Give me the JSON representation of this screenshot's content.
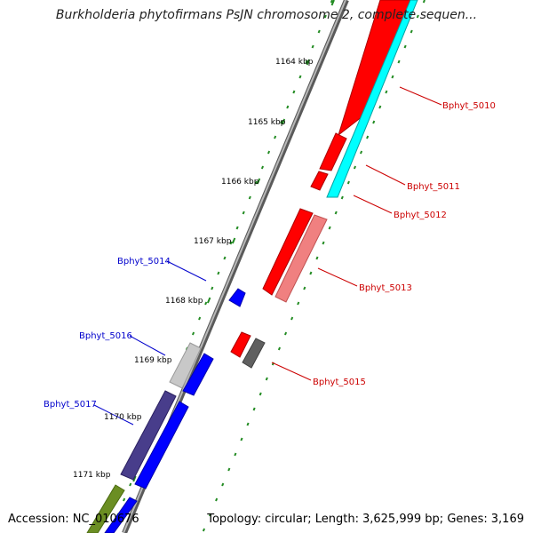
{
  "title": "Burkholderia phytofirmans PsJN chromosome 2, complete sequen...",
  "footer": {
    "accession_label": "Accession:",
    "accession": "NC_010676",
    "topology_label": "Topology:",
    "topology": "circular;",
    "length_label": "Length:",
    "length": "3,625,999 bp;",
    "genes_label": "Genes:",
    "genes": "3,169"
  },
  "scale_ticks": [
    "1164 kbp",
    "1165 kbp",
    "1166 kbp",
    "1167 kbp",
    "1168 kbp",
    "1169 kbp",
    "1170 kbp",
    "1171 kbp"
  ],
  "gene_labels": [
    {
      "text": "Bphyt_5010",
      "color": "#cc0000"
    },
    {
      "text": "Bphyt_5011",
      "color": "#cc0000"
    },
    {
      "text": "Bphyt_5012",
      "color": "#cc0000"
    },
    {
      "text": "Bphyt_5013",
      "color": "#cc0000"
    },
    {
      "text": "Bphyt_5014",
      "color": "#0000cc"
    },
    {
      "text": "Bphyt_5015",
      "color": "#cc0000"
    },
    {
      "text": "Bphyt_5016",
      "color": "#0000cc"
    },
    {
      "text": "Bphyt_5017",
      "color": "#0000cc"
    }
  ],
  "colors": {
    "backbone": "#808080",
    "tick_dots": "#228b22",
    "gene_red": "#ff0000",
    "gene_pink": "#f08080",
    "gene_cyan": "#00ffff",
    "gene_blue": "#0000ff",
    "gene_gray": "#c8c8c8",
    "gene_darkgray": "#606060",
    "gene_purple": "#483d8b",
    "gene_olive": "#6b8e23"
  }
}
